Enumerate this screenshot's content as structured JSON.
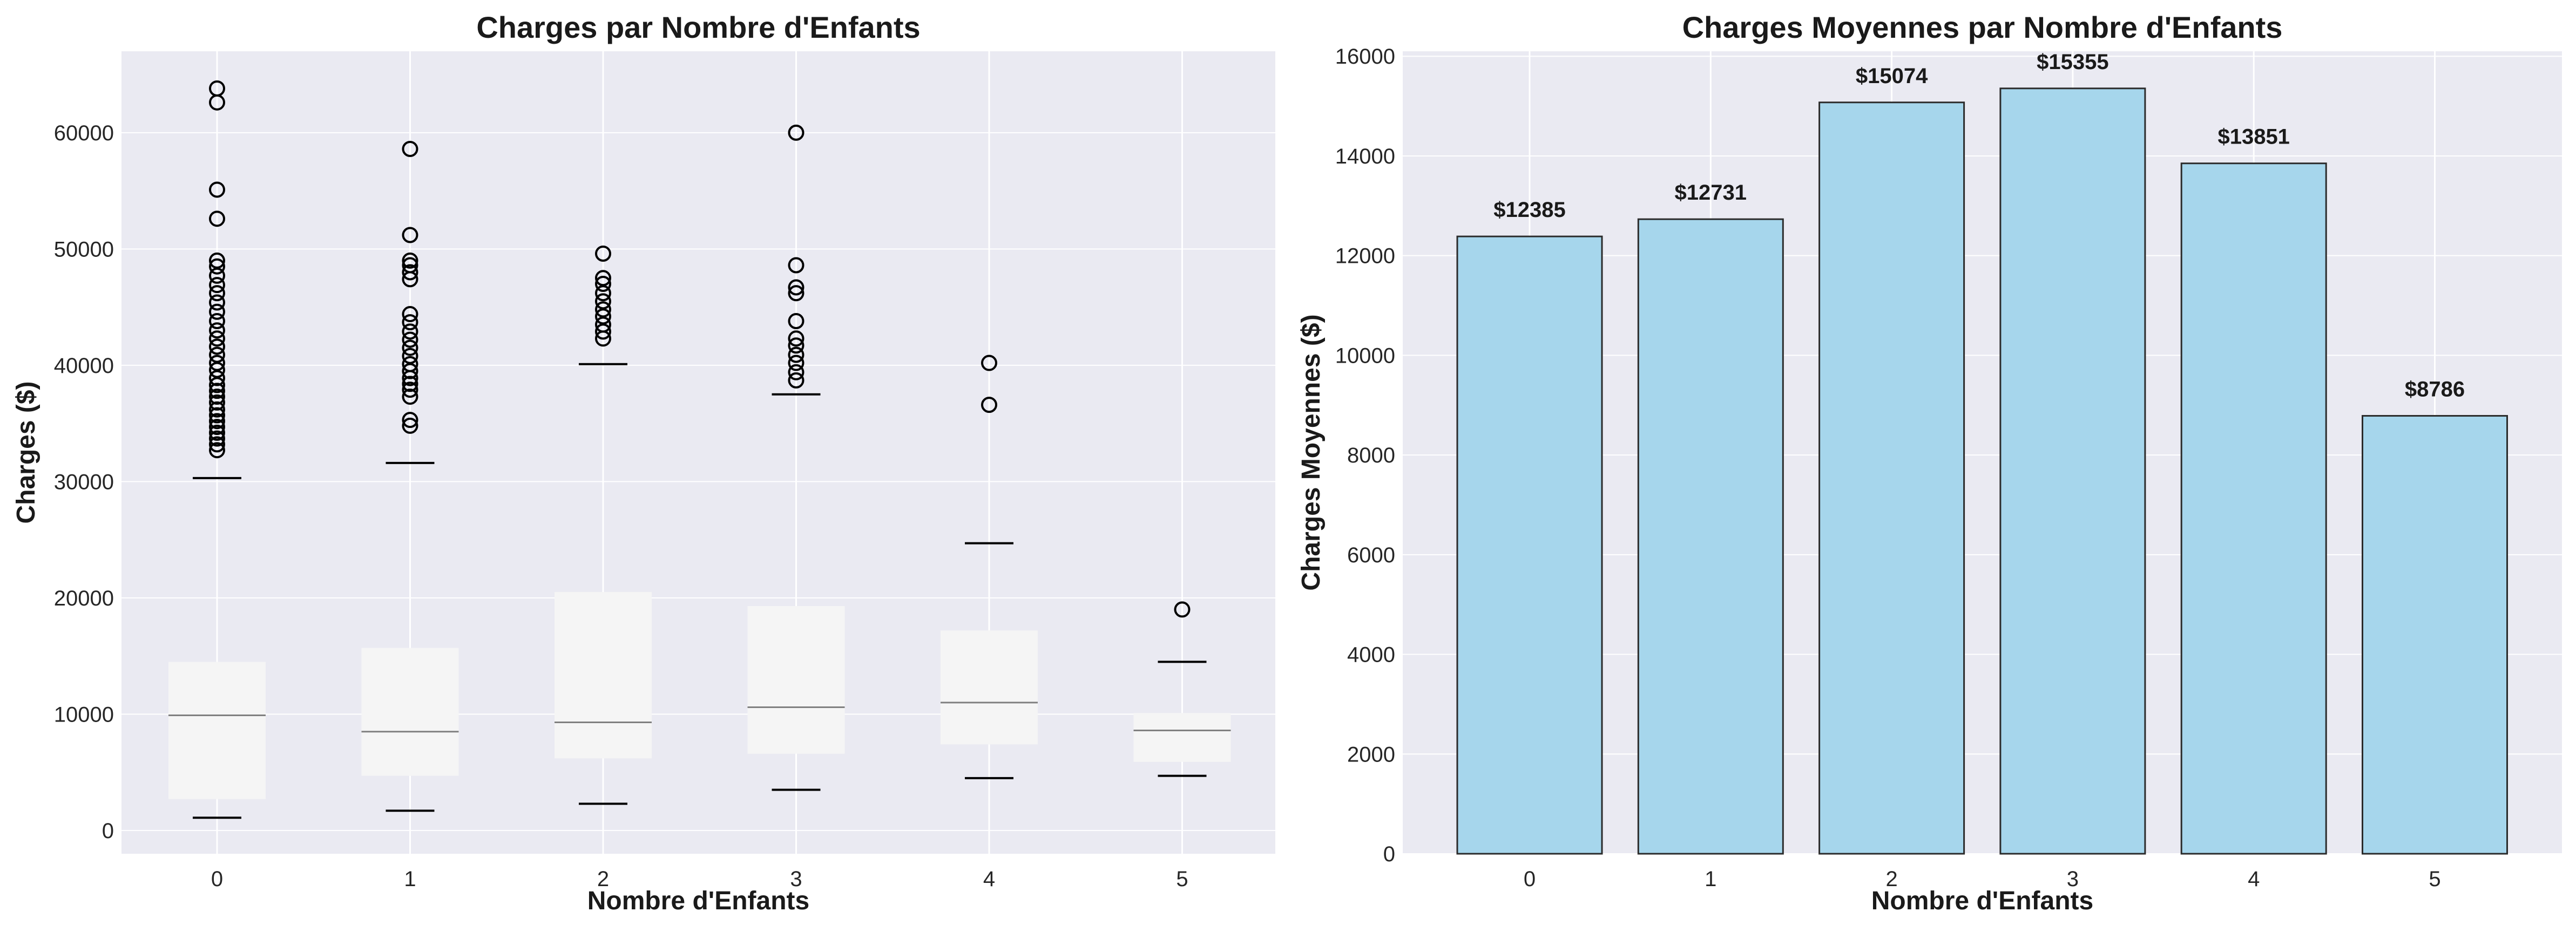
{
  "chart_data": [
    {
      "type": "box",
      "title": "Charges par Nombre d'Enfants",
      "xlabel": "Nombre d'Enfants",
      "ylabel": "Charges ($)",
      "categories": [
        "0",
        "1",
        "2",
        "3",
        "4",
        "5"
      ],
      "ylim": [
        -2000,
        67000
      ],
      "yticks": [
        0,
        10000,
        20000,
        30000,
        40000,
        50000,
        60000
      ],
      "grid": true,
      "colors": {
        "plot_bg": "#eaeaf2",
        "box_fill": "#f5f5f5",
        "median": "#808080",
        "whisker_cap": "#000000",
        "outlier": "#000000"
      },
      "boxes": [
        {
          "category": "0",
          "whislo": 1100,
          "q1": 2700,
          "med": 9900,
          "q3": 14500,
          "whishi": 30300,
          "fliers": [
            32700,
            33200,
            33700,
            34200,
            34700,
            35200,
            35700,
            36200,
            36800,
            37300,
            37800,
            38300,
            38900,
            39600,
            40200,
            40900,
            41600,
            42300,
            43000,
            43800,
            44600,
            45400,
            46200,
            46900,
            47700,
            48500,
            49000,
            52600,
            55100,
            62600,
            63800
          ]
        },
        {
          "category": "1",
          "whislo": 1700,
          "q1": 4700,
          "med": 8500,
          "q3": 15700,
          "whishi": 31600,
          "fliers": [
            34800,
            35300,
            37300,
            37900,
            38400,
            38900,
            39500,
            40100,
            40800,
            41500,
            42200,
            42900,
            43700,
            44400,
            47400,
            48000,
            48600,
            49000,
            51200,
            58600
          ]
        },
        {
          "category": "2",
          "whislo": 2300,
          "q1": 6200,
          "med": 9300,
          "q3": 20500,
          "whishi": 40100,
          "fliers": [
            42300,
            42900,
            43500,
            44200,
            44800,
            45500,
            46200,
            47000,
            47500,
            49600
          ]
        },
        {
          "category": "3",
          "whislo": 3500,
          "q1": 6600,
          "med": 10600,
          "q3": 19300,
          "whishi": 37500,
          "fliers": [
            38700,
            39400,
            40200,
            40900,
            41700,
            42300,
            43800,
            46200,
            46700,
            48600,
            60000
          ]
        },
        {
          "category": "4",
          "whislo": 4500,
          "q1": 7400,
          "med": 11000,
          "q3": 17200,
          "whishi": 24700,
          "fliers": [
            36600,
            40200
          ]
        },
        {
          "category": "5",
          "whislo": 4700,
          "q1": 5900,
          "med": 8600,
          "q3": 10100,
          "whishi": 14500,
          "fliers": [
            19000
          ]
        }
      ]
    },
    {
      "type": "bar",
      "title": "Charges Moyennes par Nombre d'Enfants",
      "xlabel": "Nombre d'Enfants",
      "ylabel": "Charges Moyennes ($)",
      "categories": [
        "0",
        "1",
        "2",
        "3",
        "4",
        "5"
      ],
      "values": [
        12385,
        12731,
        15074,
        15355,
        13851,
        8786
      ],
      "data_labels": [
        "$12385",
        "$12731",
        "$15074",
        "$15355",
        "$13851",
        "$8786"
      ],
      "ylim": [
        0,
        16100
      ],
      "yticks": [
        0,
        2000,
        4000,
        6000,
        8000,
        10000,
        12000,
        14000,
        16000
      ],
      "grid": true,
      "colors": {
        "plot_bg": "#eaeaf2",
        "bar_fill": "#a6d6ec",
        "bar_edge": "#2b2b2b"
      }
    }
  ]
}
